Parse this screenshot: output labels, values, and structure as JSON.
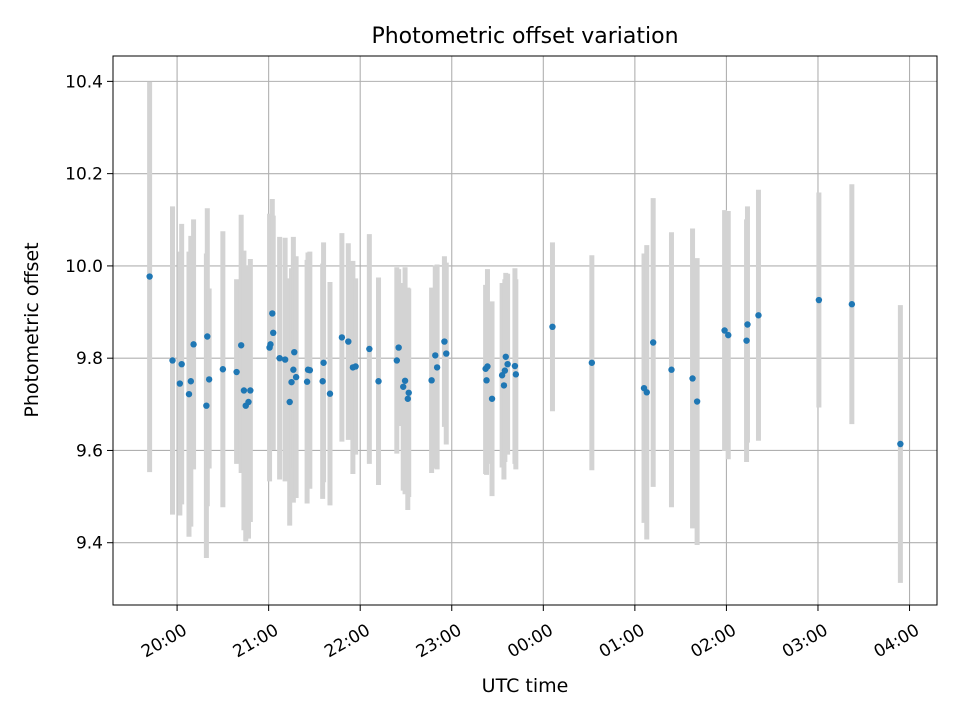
{
  "chart_data": {
    "type": "scatter",
    "title": "Photometric offset variation",
    "xlabel": "UTC time",
    "ylabel": "Photometric offset",
    "x_unit": "hours (UTC time; values above 24 are after midnight)",
    "xlim": [
      19.3,
      28.3
    ],
    "ylim": [
      9.265,
      10.455
    ],
    "grid": true,
    "x_ticks": [
      {
        "value": 20,
        "label": "20:00"
      },
      {
        "value": 21,
        "label": "21:00"
      },
      {
        "value": 22,
        "label": "22:00"
      },
      {
        "value": 23,
        "label": "23:00"
      },
      {
        "value": 24,
        "label": "00:00"
      },
      {
        "value": 25,
        "label": "01:00"
      },
      {
        "value": 26,
        "label": "02:00"
      },
      {
        "value": 27,
        "label": "03:00"
      },
      {
        "value": 28,
        "label": "04:00"
      }
    ],
    "y_ticks": [
      {
        "value": 9.4,
        "label": "9.4"
      },
      {
        "value": 9.6,
        "label": "9.6"
      },
      {
        "value": 9.8,
        "label": "9.8"
      },
      {
        "value": 10.0,
        "label": "10.0"
      },
      {
        "value": 10.2,
        "label": "10.2"
      },
      {
        "value": 10.4,
        "label": "10.4"
      }
    ],
    "colors": {
      "point": "#1f77b4",
      "errorbar": "#d3d3d3",
      "grid": "#b0b0b0",
      "axes": "#000000"
    },
    "series": [
      {
        "points": [
          {
            "x": 19.7,
            "y": 9.977,
            "lo": 9.553,
            "hi": 10.399
          },
          {
            "x": 19.95,
            "y": 9.795,
            "lo": 9.461,
            "hi": 10.129
          },
          {
            "x": 20.03,
            "y": 9.745,
            "lo": 9.459,
            "hi": 10.031
          },
          {
            "x": 20.05,
            "y": 9.787,
            "lo": 9.483,
            "hi": 10.091
          },
          {
            "x": 20.13,
            "y": 9.722,
            "lo": 9.413,
            "hi": 10.031
          },
          {
            "x": 20.15,
            "y": 9.75,
            "lo": 9.435,
            "hi": 10.065
          },
          {
            "x": 20.18,
            "y": 9.83,
            "lo": 9.559,
            "hi": 10.101
          },
          {
            "x": 20.32,
            "y": 9.697,
            "lo": 9.367,
            "hi": 10.027
          },
          {
            "x": 20.33,
            "y": 9.847,
            "lo": 9.479,
            "hi": 10.125
          },
          {
            "x": 20.35,
            "y": 9.754,
            "lo": 9.561,
            "hi": 9.951
          },
          {
            "x": 20.5,
            "y": 9.776,
            "lo": 9.477,
            "hi": 10.075
          },
          {
            "x": 20.65,
            "y": 9.77,
            "lo": 9.571,
            "hi": 9.971
          },
          {
            "x": 20.7,
            "y": 9.828,
            "lo": 9.551,
            "hi": 10.111
          },
          {
            "x": 20.73,
            "y": 9.73,
            "lo": 9.427,
            "hi": 10.033
          },
          {
            "x": 20.75,
            "y": 9.697,
            "lo": 9.403,
            "hi": 9.993
          },
          {
            "x": 20.78,
            "y": 9.705,
            "lo": 9.409,
            "hi": 10.001
          },
          {
            "x": 20.8,
            "y": 9.73,
            "lo": 9.445,
            "hi": 10.015
          },
          {
            "x": 21.01,
            "y": 9.823,
            "lo": 9.533,
            "hi": 10.113
          },
          {
            "x": 21.02,
            "y": 9.83,
            "lo": 9.611,
            "hi": 10.049
          },
          {
            "x": 21.04,
            "y": 9.897,
            "lo": 9.649,
            "hi": 10.145
          },
          {
            "x": 21.05,
            "y": 9.855,
            "lo": 9.601,
            "hi": 10.109
          },
          {
            "x": 21.12,
            "y": 9.8,
            "lo": 9.537,
            "hi": 10.063
          },
          {
            "x": 21.18,
            "y": 9.797,
            "lo": 9.533,
            "hi": 10.061
          },
          {
            "x": 21.23,
            "y": 9.705,
            "lo": 9.437,
            "hi": 9.973
          },
          {
            "x": 21.25,
            "y": 9.748,
            "lo": 9.501,
            "hi": 9.995
          },
          {
            "x": 21.27,
            "y": 9.775,
            "lo": 9.487,
            "hi": 10.063
          },
          {
            "x": 21.28,
            "y": 9.813,
            "lo": 9.561,
            "hi": 10.017
          },
          {
            "x": 21.3,
            "y": 9.759,
            "lo": 9.497,
            "hi": 10.021
          },
          {
            "x": 21.42,
            "y": 9.749,
            "lo": 9.485,
            "hi": 10.013
          },
          {
            "x": 21.43,
            "y": 9.775,
            "lo": 9.521,
            "hi": 10.029
          },
          {
            "x": 21.45,
            "y": 9.774,
            "lo": 9.517,
            "hi": 10.031
          },
          {
            "x": 21.59,
            "y": 9.75,
            "lo": 9.495,
            "hi": 10.005
          },
          {
            "x": 21.6,
            "y": 9.79,
            "lo": 9.531,
            "hi": 10.051
          },
          {
            "x": 21.67,
            "y": 9.723,
            "lo": 9.481,
            "hi": 9.965
          },
          {
            "x": 21.8,
            "y": 9.845,
            "lo": 9.619,
            "hi": 10.071
          },
          {
            "x": 21.87,
            "y": 9.836,
            "lo": 9.623,
            "hi": 10.049
          },
          {
            "x": 21.92,
            "y": 9.78,
            "lo": 9.549,
            "hi": 10.011
          },
          {
            "x": 21.95,
            "y": 9.782,
            "lo": 9.591,
            "hi": 9.973
          },
          {
            "x": 22.1,
            "y": 9.82,
            "lo": 9.571,
            "hi": 10.069
          },
          {
            "x": 22.2,
            "y": 9.75,
            "lo": 9.525,
            "hi": 9.975
          },
          {
            "x": 22.4,
            "y": 9.795,
            "lo": 9.593,
            "hi": 9.997
          },
          {
            "x": 22.42,
            "y": 9.823,
            "lo": 9.653,
            "hi": 9.993
          },
          {
            "x": 22.47,
            "y": 9.738,
            "lo": 9.513,
            "hi": 9.963
          },
          {
            "x": 22.49,
            "y": 9.751,
            "lo": 9.505,
            "hi": 9.997
          },
          {
            "x": 22.52,
            "y": 9.712,
            "lo": 9.471,
            "hi": 9.953
          },
          {
            "x": 22.53,
            "y": 9.725,
            "lo": 9.499,
            "hi": 9.951
          },
          {
            "x": 22.78,
            "y": 9.752,
            "lo": 9.551,
            "hi": 9.953
          },
          {
            "x": 22.82,
            "y": 9.806,
            "lo": 9.561,
            "hi": 10.001
          },
          {
            "x": 22.84,
            "y": 9.78,
            "lo": 9.559,
            "hi": 10.003
          },
          {
            "x": 22.92,
            "y": 9.836,
            "lo": 9.651,
            "hi": 10.021
          },
          {
            "x": 22.94,
            "y": 9.81,
            "lo": 9.613,
            "hi": 10.007
          },
          {
            "x": 23.37,
            "y": 9.777,
            "lo": 9.549,
            "hi": 9.959
          },
          {
            "x": 23.38,
            "y": 9.752,
            "lo": 9.547,
            "hi": 9.957
          },
          {
            "x": 23.39,
            "y": 9.782,
            "lo": 9.571,
            "hi": 9.993
          },
          {
            "x": 23.44,
            "y": 9.712,
            "lo": 9.501,
            "hi": 9.923
          },
          {
            "x": 23.55,
            "y": 9.763,
            "lo": 9.563,
            "hi": 9.963
          },
          {
            "x": 23.57,
            "y": 9.741,
            "lo": 9.537,
            "hi": 9.945
          },
          {
            "x": 23.58,
            "y": 9.773,
            "lo": 9.575,
            "hi": 9.971
          },
          {
            "x": 23.59,
            "y": 9.803,
            "lo": 9.621,
            "hi": 9.985
          },
          {
            "x": 23.61,
            "y": 9.787,
            "lo": 9.591,
            "hi": 9.983
          },
          {
            "x": 23.69,
            "y": 9.783,
            "lo": 9.571,
            "hi": 9.995
          },
          {
            "x": 23.7,
            "y": 9.765,
            "lo": 9.559,
            "hi": 9.971
          },
          {
            "x": 24.1,
            "y": 9.868,
            "lo": 9.685,
            "hi": 10.051
          },
          {
            "x": 24.53,
            "y": 9.79,
            "lo": 9.557,
            "hi": 10.023
          },
          {
            "x": 25.1,
            "y": 9.735,
            "lo": 9.443,
            "hi": 10.027
          },
          {
            "x": 25.13,
            "y": 9.726,
            "lo": 9.407,
            "hi": 10.045
          },
          {
            "x": 25.2,
            "y": 9.834,
            "lo": 9.521,
            "hi": 10.147
          },
          {
            "x": 25.4,
            "y": 9.775,
            "lo": 9.477,
            "hi": 10.073
          },
          {
            "x": 25.63,
            "y": 9.756,
            "lo": 9.431,
            "hi": 10.081
          },
          {
            "x": 25.68,
            "y": 9.706,
            "lo": 9.395,
            "hi": 10.017
          },
          {
            "x": 25.98,
            "y": 9.86,
            "lo": 9.599,
            "hi": 10.121
          },
          {
            "x": 26.02,
            "y": 9.85,
            "lo": 9.581,
            "hi": 10.119
          },
          {
            "x": 26.22,
            "y": 9.838,
            "lo": 9.575,
            "hi": 10.101
          },
          {
            "x": 26.23,
            "y": 9.873,
            "lo": 9.617,
            "hi": 10.129
          },
          {
            "x": 26.35,
            "y": 9.893,
            "lo": 9.621,
            "hi": 10.165
          },
          {
            "x": 27.01,
            "y": 9.926,
            "lo": 9.693,
            "hi": 10.159
          },
          {
            "x": 27.37,
            "y": 9.917,
            "lo": 9.657,
            "hi": 10.177
          },
          {
            "x": 27.9,
            "y": 9.614,
            "lo": 9.313,
            "hi": 9.915
          }
        ]
      }
    ]
  }
}
